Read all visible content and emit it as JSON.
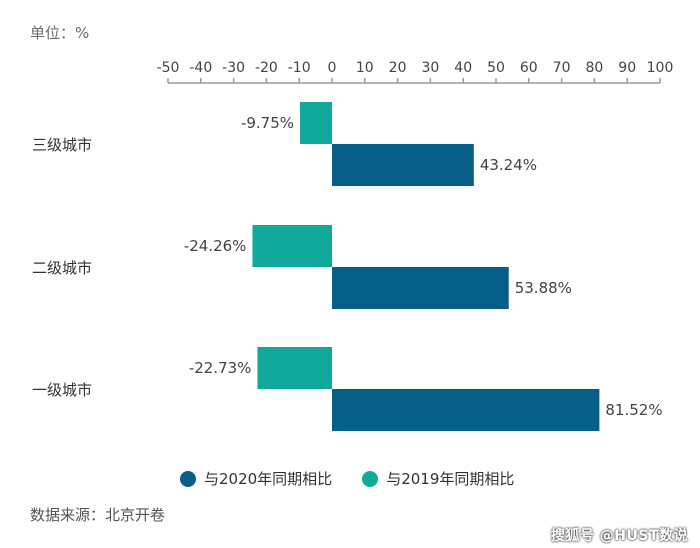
{
  "unit_label": "单位：%",
  "source_label": "数据来源：北京开卷",
  "watermark": "搜狐号 @HUST数说",
  "chart_data": {
    "type": "bar",
    "orientation": "horizontal",
    "categories": [
      "三级城市",
      "二级城市",
      "一级城市"
    ],
    "series": [
      {
        "name": "与2019年同期相比",
        "color": "#10a99b",
        "values": [
          -9.75,
          -24.26,
          -22.73
        ],
        "labels": [
          "-9.75%",
          "-24.26%",
          "-22.73%"
        ]
      },
      {
        "name": "与2020年同期相比",
        "color": "#065e89",
        "values": [
          43.24,
          53.88,
          81.52
        ],
        "labels": [
          "43.24%",
          "53.88%",
          "81.52%"
        ]
      }
    ],
    "xlim": [
      -50,
      100
    ],
    "xticks": [
      -50,
      -40,
      -30,
      -20,
      -10,
      0,
      10,
      20,
      30,
      40,
      50,
      60,
      70,
      80,
      90,
      100
    ],
    "axis_position": "top",
    "grid": false,
    "legend_position": "bottom"
  }
}
